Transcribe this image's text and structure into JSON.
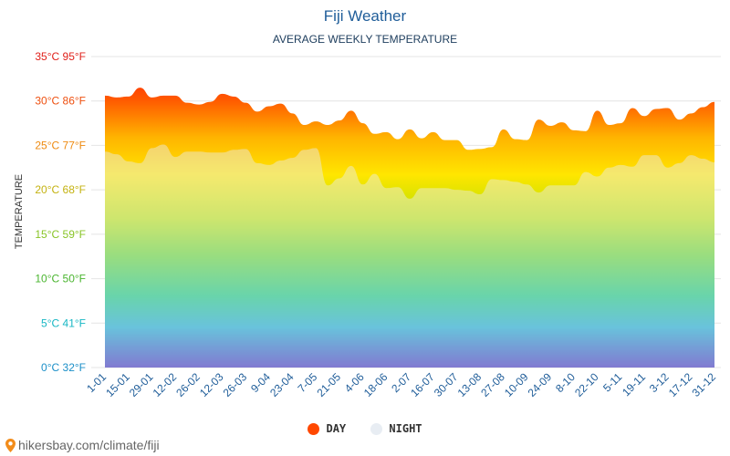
{
  "chart_data": {
    "type": "area",
    "title": "Fiji Weather",
    "subtitle": "AVERAGE WEEKLY TEMPERATURE",
    "ylabel": "TEMPERATURE",
    "ylim": [
      0,
      35
    ],
    "yticks": [
      {
        "value": 0,
        "label": "0°C 32°F",
        "color": "#1b8fc8"
      },
      {
        "value": 5,
        "label": "5°C 41°F",
        "color": "#17b7c4"
      },
      {
        "value": 10,
        "label": "10°C 50°F",
        "color": "#4ab52f"
      },
      {
        "value": 15,
        "label": "15°C 59°F",
        "color": "#88c426"
      },
      {
        "value": 20,
        "label": "20°C 68°F",
        "color": "#c4b210"
      },
      {
        "value": 25,
        "label": "25°C 77°F",
        "color": "#ee8a10"
      },
      {
        "value": 30,
        "label": "30°C 86°F",
        "color": "#ee5010"
      },
      {
        "value": 35,
        "label": "35°C 95°F",
        "color": "#e0201a"
      }
    ],
    "xlabels": [
      "1-01",
      "15-01",
      "29-01",
      "12-02",
      "26-02",
      "12-03",
      "26-03",
      "9-04",
      "23-04",
      "7-05",
      "21-05",
      "4-06",
      "18-06",
      "2-07",
      "16-07",
      "30-07",
      "13-08",
      "27-08",
      "10-09",
      "24-09",
      "8-10",
      "22-10",
      "5-11",
      "19-11",
      "3-12",
      "17-12",
      "31-12"
    ],
    "series": [
      {
        "name": "DAY",
        "color": "#ff4800",
        "values": [
          30.6,
          30.4,
          30.5,
          31.5,
          30.4,
          30.6,
          30.6,
          29.8,
          29.6,
          29.9,
          30.8,
          30.5,
          29.8,
          28.8,
          29.4,
          29.7,
          28.6,
          27.3,
          27.7,
          27.3,
          27.8,
          28.9,
          27.5,
          26.3,
          26.5,
          25.7,
          26.8,
          25.8,
          26.5,
          25.6,
          25.6,
          24.5,
          24.6,
          24.8,
          26.8,
          25.7,
          25.6,
          27.9,
          27.2,
          27.6,
          26.7,
          26.6,
          28.9,
          27.3,
          27.5,
          29.2,
          28.3,
          29.1,
          29.2,
          27.9,
          28.6,
          29.3,
          29.9
        ]
      },
      {
        "name": "NIGHT",
        "color": "#e8edf3",
        "values": [
          24.3,
          24.0,
          23.2,
          23.0,
          24.7,
          25.1,
          23.7,
          24.3,
          24.3,
          24.2,
          24.2,
          24.5,
          24.6,
          23.0,
          22.8,
          23.3,
          23.6,
          24.5,
          24.7,
          20.5,
          21.3,
          22.7,
          20.6,
          21.8,
          20.2,
          20.3,
          19.0,
          20.2,
          20.2,
          20.2,
          20.0,
          19.9,
          19.5,
          21.2,
          21.1,
          20.9,
          20.6,
          19.7,
          20.5,
          20.5,
          20.5,
          22.0,
          21.5,
          22.5,
          22.8,
          22.6,
          23.9,
          23.9,
          22.5,
          23.0,
          23.9,
          23.5,
          23.1
        ]
      }
    ]
  },
  "legend": {
    "day_label": "DAY",
    "night_label": "NIGHT"
  },
  "footer": {
    "text": "hikersbay.com/climate/fiji"
  }
}
